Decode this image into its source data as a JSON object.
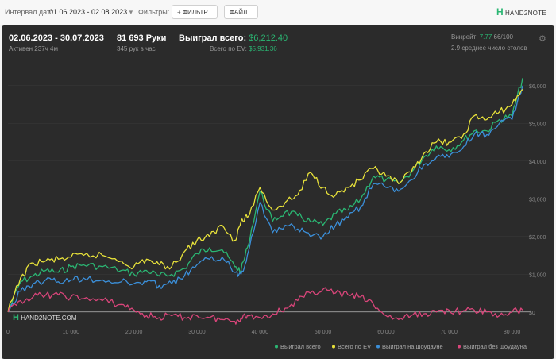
{
  "filters": {
    "date_label": "Интервал дат:",
    "date_value": "01.06.2023 - 02.08.2023",
    "filters_label": "Фильтры:",
    "filters_button": "ФИЛЬТР...",
    "files_button": "ФАЙЛ..."
  },
  "brand": {
    "name": "HAND2NOTE.COM",
    "topbar_name": "HAND2NOTE"
  },
  "stats": {
    "period": "02.06.2023 - 30.07.2023",
    "active": "Активен 237ч 4м",
    "hands": "81 693 Руки",
    "hands_per_hour": "345 рук в час",
    "won_label": "Выиграл всего:",
    "won_value": "$6,212.40",
    "ev_label": "Всего по EV:",
    "ev_value": "$5,931.36",
    "winrate_label": "Винрейт:",
    "winrate_value": "7.77",
    "winrate_total": "66/100",
    "tables": "2.9 среднее число столов"
  },
  "colors": {
    "won": "#2bb673",
    "ev": "#e8e23a",
    "showdown": "#3b8fd9",
    "no_showdown": "#d9457a",
    "accent": "#2bb673"
  },
  "chart_data": {
    "type": "line",
    "x_ticks": [
      "0",
      "10 000",
      "20 000",
      "30 000",
      "40 000",
      "50 000",
      "60 000",
      "70 000",
      "80 000"
    ],
    "y_ticks": [
      "$0",
      "$1,000",
      "$2,000",
      "$3,000",
      "$4,000",
      "$5,000",
      "$6,000"
    ],
    "xlim": [
      0,
      81693
    ],
    "ylim": [
      -300,
      6500
    ],
    "legend_position": "bottom-right",
    "series": [
      {
        "name": "Выиграл всего",
        "color": "#2bb673",
        "x": [
          0,
          2000,
          4000,
          6000,
          8000,
          10000,
          12000,
          15000,
          18000,
          20000,
          22000,
          24000,
          26000,
          28000,
          30000,
          32000,
          34000,
          36000,
          37000,
          38000,
          40000,
          42000,
          44000,
          46000,
          48000,
          50000,
          52000,
          54000,
          56000,
          58000,
          60000,
          62000,
          64000,
          66000,
          68000,
          70000,
          72000,
          74000,
          76000,
          78000,
          80000,
          81693
        ],
        "y": [
          0,
          800,
          950,
          1100,
          1050,
          1200,
          1250,
          1200,
          1100,
          1000,
          1100,
          950,
          1000,
          1150,
          1550,
          1700,
          1650,
          1200,
          1100,
          1700,
          3200,
          2400,
          2650,
          2550,
          2400,
          2300,
          2600,
          2700,
          3000,
          3600,
          3500,
          3400,
          3700,
          4100,
          4400,
          4300,
          4500,
          4800,
          4800,
          5100,
          5200,
          6200
        ]
      },
      {
        "name": "Всего по EV",
        "color": "#e8e23a",
        "x": [
          0,
          2000,
          4000,
          6000,
          8000,
          10000,
          12000,
          15000,
          18000,
          20000,
          22000,
          24000,
          26000,
          28000,
          30000,
          32000,
          34000,
          36000,
          37000,
          38000,
          40000,
          42000,
          44000,
          46000,
          48000,
          50000,
          52000,
          54000,
          56000,
          58000,
          60000,
          62000,
          64000,
          66000,
          68000,
          70000,
          72000,
          74000,
          76000,
          78000,
          80000,
          81693
        ],
        "y": [
          0,
          900,
          1300,
          1350,
          1400,
          1450,
          1500,
          1500,
          1350,
          1200,
          1400,
          1250,
          1200,
          1600,
          1900,
          2000,
          2300,
          1900,
          2400,
          2500,
          3300,
          2700,
          2900,
          3100,
          3700,
          3300,
          3100,
          3300,
          3500,
          3800,
          3600,
          3400,
          3700,
          4200,
          4500,
          4500,
          4600,
          5200,
          5100,
          5300,
          5500,
          5900
        ]
      },
      {
        "name": "Выиграл на шоудауне",
        "color": "#3b8fd9",
        "x": [
          0,
          2000,
          4000,
          6000,
          8000,
          10000,
          12000,
          15000,
          18000,
          20000,
          22000,
          24000,
          26000,
          28000,
          30000,
          32000,
          34000,
          36000,
          37000,
          38000,
          40000,
          42000,
          44000,
          46000,
          48000,
          50000,
          52000,
          54000,
          56000,
          58000,
          60000,
          62000,
          64000,
          66000,
          68000,
          70000,
          72000,
          74000,
          76000,
          78000,
          80000,
          81693
        ],
        "y": [
          0,
          550,
          750,
          850,
          800,
          850,
          900,
          850,
          800,
          750,
          800,
          700,
          750,
          950,
          1250,
          1400,
          1450,
          1050,
          1000,
          1500,
          2900,
          2100,
          2300,
          2200,
          2000,
          2000,
          2300,
          2500,
          2800,
          3400,
          3300,
          3200,
          3500,
          3900,
          4100,
          4100,
          4300,
          4700,
          4700,
          5000,
          5100,
          6000
        ]
      },
      {
        "name": "Выиграл без шоудауна",
        "color": "#d9457a",
        "x": [
          0,
          2000,
          4000,
          6000,
          8000,
          10000,
          12000,
          15000,
          18000,
          20000,
          22000,
          24000,
          26000,
          28000,
          30000,
          32000,
          34000,
          36000,
          37000,
          38000,
          40000,
          42000,
          44000,
          46000,
          48000,
          50000,
          52000,
          54000,
          56000,
          58000,
          60000,
          62000,
          64000,
          66000,
          68000,
          70000,
          72000,
          74000,
          76000,
          78000,
          80000,
          81693
        ],
        "y": [
          0,
          300,
          400,
          450,
          450,
          400,
          350,
          300,
          200,
          50,
          -100,
          -150,
          -100,
          -150,
          -100,
          -150,
          -200,
          -250,
          -150,
          -100,
          -150,
          -50,
          100,
          300,
          500,
          600,
          500,
          450,
          400,
          200,
          -100,
          -200,
          -100,
          -50,
          0,
          50,
          0,
          50,
          0,
          -100,
          0,
          50
        ]
      }
    ]
  }
}
